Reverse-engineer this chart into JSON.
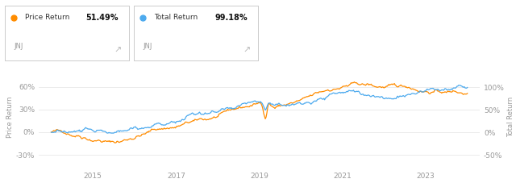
{
  "price_return_label": "Price Return",
  "price_return_pct": "51.49%",
  "total_return_label": "Total Return",
  "total_return_pct": "99.18%",
  "ticker": "JNJ",
  "price_color": "#FF8C00",
  "total_color": "#4DAAEE",
  "bg_color": "#ffffff",
  "grid_color": "#e8e8e8",
  "left_yticks": [
    -30,
    0,
    30,
    60
  ],
  "right_yticks": [
    -50,
    0,
    50,
    100
  ],
  "left_ylim": [
    -48,
    88
  ],
  "right_ylim": [
    -80,
    147
  ],
  "xtick_years": [
    "2015",
    "2017",
    "2019",
    "2021",
    "2023"
  ],
  "left_ylabel": "Price Return",
  "right_ylabel": "Total Return",
  "tick_label_color": "#999999",
  "axis_label_color": "#999999"
}
